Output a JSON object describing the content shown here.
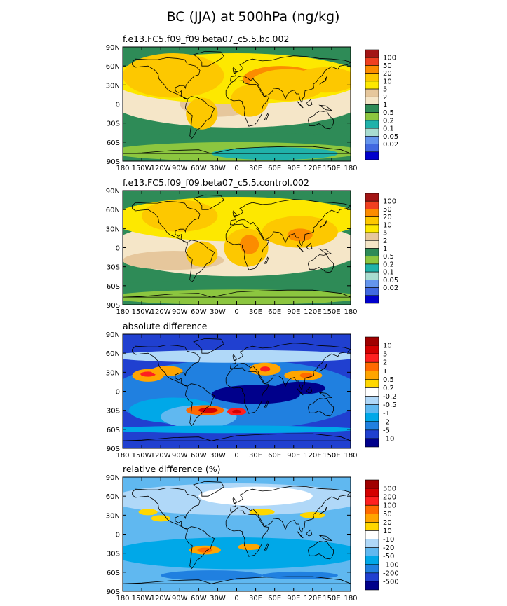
{
  "title": "BC (JJA) at 500hPa (ng/kg)",
  "x_ticks": [
    "180",
    "150W",
    "120W",
    "90W",
    "60W",
    "30W",
    "0",
    "30E",
    "60E",
    "90E",
    "120E",
    "150E",
    "180"
  ],
  "y_ticks": [
    "90N",
    "60N",
    "30N",
    "0",
    "30S",
    "60S",
    "90S"
  ],
  "chart_data": [
    {
      "type": "heatmap",
      "title": "f.e13.FC5.f09_f09.beta07_c5.5.bc.002",
      "xlim": [
        -180,
        180
      ],
      "ylim": [
        -90,
        90
      ],
      "legend": {
        "placement": "right",
        "labels": [
          "100",
          "50",
          "20",
          "10",
          "5",
          "2",
          "1",
          "0.5",
          "0.2",
          "0.1",
          "0.05",
          "0.02"
        ],
        "colors": [
          "#a31515",
          "#f04020",
          "#fc8c00",
          "#fdc800",
          "#fde800",
          "#e6c79c",
          "#f5e6c8",
          "#2e8b57",
          "#8cc63f",
          "#20b2aa",
          "#a8dcd0",
          "#6495ed",
          "#4169e1",
          "#0000cd"
        ]
      }
    },
    {
      "type": "heatmap",
      "title": "f.e13.FC5.f09_f09.beta07_c5.5.control.002",
      "xlim": [
        -180,
        180
      ],
      "ylim": [
        -90,
        90
      ],
      "legend": {
        "placement": "right",
        "labels": [
          "100",
          "50",
          "20",
          "10",
          "5",
          "2",
          "1",
          "0.5",
          "0.2",
          "0.1",
          "0.05",
          "0.02"
        ],
        "colors": [
          "#a31515",
          "#f04020",
          "#fc8c00",
          "#fdc800",
          "#fde800",
          "#e6c79c",
          "#f5e6c8",
          "#2e8b57",
          "#8cc63f",
          "#20b2aa",
          "#a8dcd0",
          "#6495ed",
          "#4169e1",
          "#0000cd"
        ]
      }
    },
    {
      "type": "heatmap",
      "title": "absolute difference",
      "xlim": [
        -180,
        180
      ],
      "ylim": [
        -90,
        90
      ],
      "legend": {
        "placement": "right",
        "labels": [
          "10",
          "5",
          "2",
          "1",
          "0.5",
          "0.2",
          "-0.2",
          "-0.5",
          "-1",
          "-2",
          "-5",
          "-10"
        ],
        "colors": [
          "#a00000",
          "#d40000",
          "#ff2020",
          "#ff6a00",
          "#ffa500",
          "#ffd700",
          "#ffffff",
          "#b0d8f8",
          "#60b8f0",
          "#00a8e8",
          "#2080e0",
          "#2040d0",
          "#00008b"
        ]
      }
    },
    {
      "type": "heatmap",
      "title": "relative difference (%)",
      "xlim": [
        -180,
        180
      ],
      "ylim": [
        -90,
        90
      ],
      "legend": {
        "placement": "right",
        "labels": [
          "500",
          "200",
          "100",
          "50",
          "20",
          "10",
          "-10",
          "-20",
          "-50",
          "-100",
          "-200",
          "-500"
        ],
        "colors": [
          "#a00000",
          "#d40000",
          "#ff2020",
          "#ff6a00",
          "#ffa500",
          "#ffd700",
          "#ffffff",
          "#b0d8f8",
          "#60b8f0",
          "#00a8e8",
          "#2080e0",
          "#2040d0",
          "#00008b"
        ]
      }
    }
  ]
}
